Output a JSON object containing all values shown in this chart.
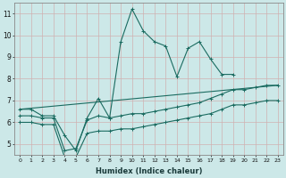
{
  "xlabel": "Humidex (Indice chaleur)",
  "bg_color": "#cce8e8",
  "grid_color": "#c0c0b0",
  "line_color": "#1a6b60",
  "x_values": [
    0,
    1,
    2,
    3,
    4,
    5,
    6,
    7,
    8,
    9,
    10,
    11,
    12,
    13,
    14,
    15,
    16,
    17,
    18,
    19,
    20,
    21,
    22,
    23
  ],
  "series1": [
    6.6,
    6.6,
    6.3,
    6.3,
    5.4,
    4.7,
    6.2,
    7.1,
    6.2,
    9.7,
    11.2,
    10.2,
    9.7,
    9.5,
    8.1,
    9.4,
    9.7,
    8.9,
    8.2,
    8.2,
    null,
    null,
    null,
    null
  ],
  "series2": [
    6.6,
    null,
    null,
    null,
    null,
    null,
    null,
    null,
    null,
    null,
    null,
    null,
    null,
    null,
    null,
    null,
    null,
    null,
    null,
    null,
    null,
    null,
    null,
    7.7
  ],
  "series3": [
    6.3,
    6.3,
    6.2,
    6.2,
    4.7,
    4.8,
    6.1,
    6.3,
    6.2,
    6.3,
    6.4,
    6.4,
    6.5,
    6.6,
    6.7,
    6.8,
    6.9,
    7.1,
    7.3,
    7.5,
    7.5,
    7.6,
    7.7,
    7.7
  ],
  "series4": [
    6.0,
    6.0,
    5.9,
    5.9,
    4.4,
    4.4,
    5.5,
    5.6,
    5.6,
    5.7,
    5.7,
    5.8,
    5.9,
    6.0,
    6.1,
    6.2,
    6.3,
    6.4,
    6.6,
    6.8,
    6.8,
    6.9,
    7.0,
    7.0
  ],
  "ylim": [
    4.5,
    11.5
  ],
  "xlim": [
    -0.5,
    23.5
  ],
  "yticks": [
    5,
    6,
    7,
    8,
    9,
    10,
    11
  ],
  "xticks": [
    0,
    1,
    2,
    3,
    4,
    5,
    6,
    7,
    8,
    9,
    10,
    11,
    12,
    13,
    14,
    15,
    16,
    17,
    18,
    19,
    20,
    21,
    22,
    23
  ]
}
